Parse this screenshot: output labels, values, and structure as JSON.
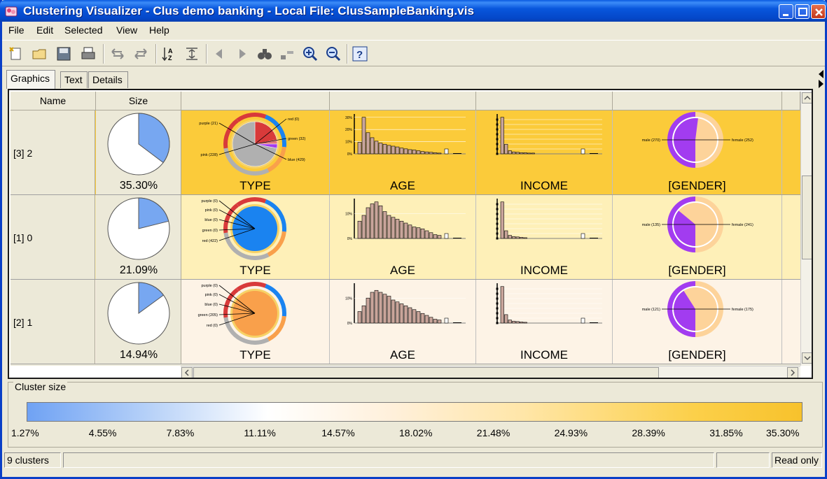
{
  "window": {
    "title": "Clustering Visualizer - Clus demo banking - Local File: ClusSampleBanking.vis"
  },
  "menu": [
    {
      "label": "File"
    },
    {
      "label": "Edit"
    },
    {
      "label": "Selected"
    },
    {
      "label": "View"
    },
    {
      "label": "Help"
    }
  ],
  "toolbar": [
    "new-icon",
    "open-icon",
    "save-icon",
    "print-icon",
    "undo-icon",
    "redo-icon",
    "sort-icon",
    "fit-icon",
    "back-icon",
    "forward-icon",
    "find-icon",
    "layout-icon",
    "zoom-in-icon",
    "zoom-out-icon",
    "help-icon"
  ],
  "tabs": [
    {
      "label": "Graphics"
    },
    {
      "label": "Text"
    },
    {
      "label": "Details"
    }
  ],
  "columns": {
    "name": "Name",
    "size": "Size"
  },
  "colors": {
    "cluster_high": "#fbcb3a",
    "cluster_mid": "#fef0b8",
    "cluster_low": "#fdf3e6",
    "blue": "#1a83f0",
    "red": "#d83a3a",
    "pink": "#e07a7a",
    "purple": "#a23cf0",
    "green": "#b0b0b0",
    "orange": "#f9a04b",
    "female": "#fdd39a",
    "male": "#a23cf0",
    "bar": "#c9a59b",
    "gradient": [
      "#6fa2f4",
      "#ffffff",
      "#fcd04a",
      "#f7c22c"
    ]
  },
  "clusters": [
    {
      "name": "[3] 2",
      "size_pct": "35.30%",
      "size_fraction": 0.353,
      "type": {
        "label": "TYPE",
        "annotations": [
          "purple (21)",
          "pink (228)",
          "red (0)",
          "green (32)",
          "blue (429)"
        ],
        "slices": [
          0.22,
          0.03,
          0.03,
          0.72
        ]
      },
      "age": {
        "label": "AGE",
        "yticks": [
          "30%",
          "20%",
          "10%",
          "0%"
        ],
        "bars": [
          0.3,
          0.95,
          0.55,
          0.42,
          0.33,
          0.28,
          0.25,
          0.22,
          0.2,
          0.18,
          0.15,
          0.13,
          0.11,
          0.1,
          0.08,
          0.06,
          0.05,
          0.04,
          0.03,
          0.02
        ]
      },
      "income": {
        "label": "INCOME",
        "bars": [
          0.95,
          0.25,
          0.08,
          0.05,
          0.04,
          0.03,
          0.03,
          0.02,
          0.02
        ]
      },
      "gender": {
        "label": "[GENDER]",
        "annotations": [
          "male (270)",
          "female (252)"
        ],
        "female_fraction": 0.48
      }
    },
    {
      "name": "[1] 0",
      "size_pct": "21.09%",
      "size_fraction": 0.2109,
      "type": {
        "label": "TYPE",
        "annotations": [
          "purple (0)",
          "pink (0)",
          "blue (0)",
          "green (0)",
          "red (422)"
        ],
        "slices": [
          0.0,
          0.0,
          0.0,
          1.0
        ]
      },
      "age": {
        "label": "AGE",
        "yticks": [
          "10%",
          "0%"
        ],
        "bars": [
          0.45,
          0.6,
          0.8,
          0.9,
          0.95,
          0.85,
          0.7,
          0.6,
          0.55,
          0.5,
          0.45,
          0.4,
          0.35,
          0.3,
          0.28,
          0.25,
          0.2,
          0.15,
          0.1,
          0.08
        ]
      },
      "income": {
        "label": "INCOME",
        "bars": [
          0.95,
          0.2,
          0.08,
          0.05,
          0.04,
          0.03,
          0.02
        ]
      },
      "gender": {
        "label": "[GENDER]",
        "annotations": [
          "male (135)",
          "female (241)"
        ],
        "female_fraction": 0.64
      }
    },
    {
      "name": "[2] 1",
      "size_pct": "14.94%",
      "size_fraction": 0.1494,
      "type": {
        "label": "TYPE",
        "annotations": [
          "purple (0)",
          "pink (0)",
          "blue (0)",
          "green (205)",
          "red (0)"
        ],
        "slices": [
          0.0,
          0.0,
          0.0,
          1.0
        ]
      },
      "age": {
        "label": "AGE",
        "yticks": [
          "10%",
          "0%"
        ],
        "bars": [
          0.3,
          0.45,
          0.65,
          0.8,
          0.85,
          0.8,
          0.75,
          0.7,
          0.6,
          0.55,
          0.5,
          0.45,
          0.4,
          0.35,
          0.3,
          0.25,
          0.2,
          0.15,
          0.1,
          0.08
        ]
      },
      "income": {
        "label": "INCOME",
        "bars": [
          0.95,
          0.22,
          0.08,
          0.05,
          0.04,
          0.03,
          0.02
        ]
      },
      "gender": {
        "label": "[GENDER]",
        "annotations": [
          "male (121)",
          "female (175)"
        ],
        "female_fraction": 0.59
      }
    }
  ],
  "legend": {
    "title": "Cluster size",
    "ticks": [
      "1.27%",
      "4.55%",
      "7.83%",
      "11.11%",
      "14.57%",
      "18.02%",
      "21.48%",
      "24.93%",
      "28.39%",
      "31.85%",
      "35.30%"
    ]
  },
  "status": {
    "left": "9 clusters",
    "right": "Read only"
  }
}
